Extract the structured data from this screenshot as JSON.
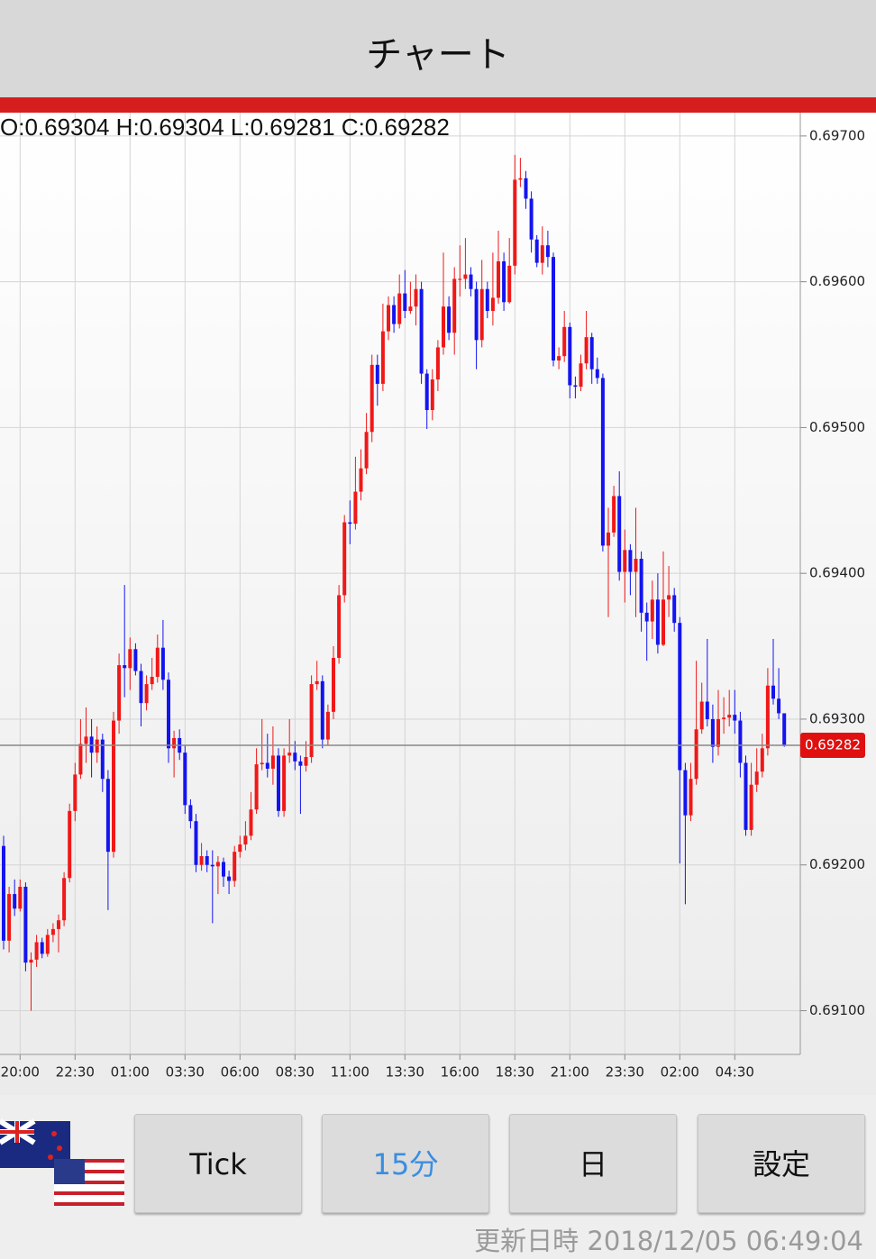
{
  "header": {
    "title": "チャート"
  },
  "chart_data": {
    "type": "candlestick",
    "ohlc_labels": [
      "O:",
      "H:",
      "L:",
      "C:"
    ],
    "categories": [
      null,
      null,
      null,
      "20:00",
      null,
      null,
      null,
      null,
      null,
      null,
      null,
      null,
      null,
      "22:30",
      null,
      null,
      null,
      null,
      null,
      null,
      null,
      null,
      null,
      "01:00",
      null,
      null,
      null,
      null,
      null,
      null,
      null,
      null,
      null,
      "03:30",
      null,
      null,
      null,
      null,
      null,
      null,
      null,
      null,
      null,
      "06:00",
      null,
      null,
      null,
      null,
      null,
      null,
      null,
      null,
      null,
      "08:30",
      null,
      null,
      null,
      null,
      null,
      null,
      null,
      null,
      null,
      "11:00",
      null,
      null,
      null,
      null,
      null,
      null,
      null,
      null,
      null,
      "13:30",
      null,
      null,
      null,
      null,
      null,
      null,
      null,
      null,
      null,
      "16:00",
      null,
      null,
      null,
      null,
      null,
      null,
      null,
      null,
      null,
      "18:30",
      null,
      null,
      null,
      null,
      null,
      null,
      null,
      null,
      null,
      "21:00",
      null,
      null,
      null,
      null,
      null,
      null,
      null,
      null,
      null,
      "23:30",
      null,
      null,
      null,
      null,
      null,
      null,
      null,
      null,
      null,
      "02:00",
      null,
      null,
      null,
      null,
      null,
      null,
      null,
      null,
      null,
      "04:30",
      null,
      null,
      null,
      null,
      null,
      null,
      null,
      null,
      null
    ],
    "open": [
      0.69213,
      0.69148,
      0.6918,
      0.6917,
      0.69185,
      0.69133,
      0.69135,
      0.69147,
      0.69139,
      0.69152,
      0.69156,
      0.69162,
      0.69191,
      0.69237,
      0.69262,
      0.69283,
      0.69288,
      0.69277,
      0.69286,
      0.69259,
      0.69209,
      0.69299,
      0.69337,
      0.69335,
      0.69348,
      0.69333,
      0.69311,
      0.69324,
      0.69329,
      0.69349,
      0.69327,
      0.6928,
      0.69287,
      0.69277,
      0.69241,
      0.6923,
      0.692,
      0.69206,
      0.692,
      0.69199,
      0.69202,
      0.69192,
      0.69189,
      0.69209,
      0.69214,
      0.6922,
      0.69238,
      0.69269,
      0.6927,
      0.69266,
      0.69275,
      0.69237,
      0.69275,
      0.69277,
      0.69271,
      0.69268,
      0.69274,
      0.69324,
      0.69326,
      0.69286,
      0.69305,
      0.69342,
      0.69385,
      0.69435,
      0.69434,
      0.69456,
      0.69472,
      0.69497,
      0.69543,
      0.6953,
      0.69566,
      0.69584,
      0.69571,
      0.69592,
      0.6958,
      0.69583,
      0.69595,
      0.69537,
      0.69512,
      0.69533,
      0.69555,
      0.69583,
      0.69565,
      0.69602,
      0.69602,
      0.69605,
      0.69595,
      0.6956,
      0.69595,
      0.6958,
      0.69589,
      0.69614,
      0.69586,
      0.69611,
      0.6967,
      0.69671,
      0.69657,
      0.69629,
      0.69613,
      0.69625,
      0.69617,
      0.69546,
      0.69549,
      0.69569,
      0.69529,
      0.69528,
      0.69544,
      0.69562,
      0.6954,
      0.69534,
      0.69419,
      0.69428,
      0.69453,
      0.69401,
      0.69416,
      0.69401,
      0.6941,
      0.69373,
      0.69367,
      0.69382,
      0.69351,
      0.69382,
      0.69385,
      0.69366,
      0.69265,
      0.69234,
      0.69259,
      0.69293,
      0.69312,
      0.693,
      0.69281,
      0.693,
      0.69301,
      0.69303,
      0.69299,
      0.6927,
      0.69224,
      0.69255,
      0.69264,
      0.6928,
      0.69323,
      0.69314,
      0.69304
    ],
    "high": [
      0.6922,
      0.69185,
      0.6919,
      0.6919,
      0.69188,
      0.6914,
      0.69152,
      0.6915,
      0.69156,
      0.6916,
      0.69166,
      0.69195,
      0.69242,
      0.6927,
      0.693,
      0.69308,
      0.693,
      0.69295,
      0.6929,
      0.69265,
      0.69305,
      0.69345,
      0.69392,
      0.69356,
      0.69352,
      0.69338,
      0.6933,
      0.69342,
      0.69358,
      0.69368,
      0.69332,
      0.69292,
      0.69293,
      0.69282,
      0.69245,
      0.69235,
      0.69215,
      0.6921,
      0.6921,
      0.69206,
      0.69205,
      0.69196,
      0.69213,
      0.6922,
      0.6923,
      0.6925,
      0.6928,
      0.693,
      0.6929,
      0.69295,
      0.6928,
      0.6928,
      0.693,
      0.69285,
      0.69275,
      0.69285,
      0.6933,
      0.6934,
      0.6933,
      0.6931,
      0.6935,
      0.69392,
      0.6944,
      0.6945,
      0.6948,
      0.69485,
      0.6951,
      0.6955,
      0.6955,
      0.69585,
      0.6959,
      0.6959,
      0.69605,
      0.69608,
      0.696,
      0.69605,
      0.696,
      0.6954,
      0.6954,
      0.6956,
      0.6962,
      0.6959,
      0.6961,
      0.69625,
      0.6963,
      0.6961,
      0.696,
      0.69615,
      0.696,
      0.6962,
      0.69635,
      0.6962,
      0.6963,
      0.69687,
      0.69685,
      0.69676,
      0.69662,
      0.69632,
      0.69638,
      0.69635,
      0.6962,
      0.69555,
      0.6958,
      0.69572,
      0.69535,
      0.6955,
      0.6958,
      0.69565,
      0.69548,
      0.69537,
      0.69445,
      0.6946,
      0.6947,
      0.6943,
      0.6942,
      0.69445,
      0.69415,
      0.6938,
      0.69395,
      0.694,
      0.69415,
      0.69405,
      0.6939,
      0.6937,
      0.6927,
      0.6927,
      0.6934,
      0.69325,
      0.69355,
      0.6931,
      0.6932,
      0.69315,
      0.6932,
      0.6932,
      0.69305,
      0.69275,
      0.6927,
      0.6928,
      0.6929,
      0.69335,
      0.69355,
      0.69335,
      0.69304
    ],
    "low": [
      0.69142,
      0.6914,
      0.69165,
      0.69168,
      0.69127,
      0.691,
      0.6913,
      0.69136,
      0.69137,
      0.69147,
      0.6914,
      0.69158,
      0.69188,
      0.6923,
      0.69259,
      0.6927,
      0.6926,
      0.6927,
      0.6925,
      0.69169,
      0.69205,
      0.6929,
      0.69315,
      0.6932,
      0.6933,
      0.69295,
      0.69306,
      0.6932,
      0.69325,
      0.6932,
      0.6927,
      0.6926,
      0.69272,
      0.69235,
      0.69225,
      0.69195,
      0.69196,
      0.69195,
      0.6916,
      0.6918,
      0.69185,
      0.6918,
      0.69185,
      0.69205,
      0.6921,
      0.69217,
      0.69235,
      0.69265,
      0.6926,
      0.69255,
      0.69233,
      0.69233,
      0.6927,
      0.69265,
      0.69235,
      0.69264,
      0.6927,
      0.6932,
      0.6928,
      0.69282,
      0.693,
      0.69338,
      0.6938,
      0.6942,
      0.6943,
      0.6945,
      0.69468,
      0.6949,
      0.69515,
      0.69525,
      0.6956,
      0.69565,
      0.69568,
      0.69575,
      0.69578,
      0.6957,
      0.6953,
      0.69499,
      0.69505,
      0.69525,
      0.6955,
      0.6956,
      0.6955,
      0.6959,
      0.69595,
      0.6959,
      0.6954,
      0.69555,
      0.69575,
      0.6957,
      0.69585,
      0.6958,
      0.69585,
      0.69605,
      0.69665,
      0.6965,
      0.6962,
      0.6961,
      0.69605,
      0.6961,
      0.69542,
      0.6954,
      0.69545,
      0.6952,
      0.6952,
      0.69525,
      0.6954,
      0.6953,
      0.6953,
      0.69415,
      0.6937,
      0.69425,
      0.69395,
      0.6938,
      0.69385,
      0.6937,
      0.6936,
      0.6934,
      0.69355,
      0.69345,
      0.6935,
      0.6937,
      0.6936,
      0.69201,
      0.69173,
      0.6923,
      0.69255,
      0.6929,
      0.69295,
      0.6927,
      0.69275,
      0.6929,
      0.69295,
      0.6929,
      0.6926,
      0.6922,
      0.6922,
      0.6925,
      0.6926,
      0.69275,
      0.6931,
      0.693,
      0.69281
    ],
    "close": [
      0.69148,
      0.6918,
      0.6917,
      0.69185,
      0.69133,
      0.69135,
      0.69147,
      0.69139,
      0.69152,
      0.69156,
      0.69162,
      0.69191,
      0.69237,
      0.69262,
      0.69283,
      0.69288,
      0.69277,
      0.69286,
      0.69259,
      0.69209,
      0.69299,
      0.69337,
      0.69335,
      0.69348,
      0.69333,
      0.69311,
      0.69324,
      0.69329,
      0.69349,
      0.69327,
      0.6928,
      0.69287,
      0.69277,
      0.69241,
      0.6923,
      0.692,
      0.69206,
      0.692,
      0.69199,
      0.69202,
      0.69192,
      0.69189,
      0.69209,
      0.69214,
      0.6922,
      0.69238,
      0.69269,
      0.6927,
      0.69266,
      0.69275,
      0.69237,
      0.69275,
      0.69277,
      0.69271,
      0.69268,
      0.69274,
      0.69324,
      0.69326,
      0.69286,
      0.69305,
      0.69342,
      0.69385,
      0.69435,
      0.69434,
      0.69456,
      0.69472,
      0.69497,
      0.69543,
      0.6953,
      0.69566,
      0.69584,
      0.69571,
      0.69592,
      0.6958,
      0.69583,
      0.69595,
      0.69537,
      0.69512,
      0.69533,
      0.69555,
      0.69583,
      0.69565,
      0.69602,
      0.69602,
      0.69605,
      0.69595,
      0.6956,
      0.69595,
      0.6958,
      0.69589,
      0.69614,
      0.69586,
      0.69611,
      0.6967,
      0.69671,
      0.69657,
      0.69629,
      0.69613,
      0.69625,
      0.69617,
      0.69546,
      0.69549,
      0.69569,
      0.69529,
      0.69528,
      0.69544,
      0.69562,
      0.6954,
      0.69534,
      0.69419,
      0.69428,
      0.69453,
      0.69401,
      0.69416,
      0.69401,
      0.6941,
      0.69373,
      0.69367,
      0.69382,
      0.69351,
      0.69382,
      0.69385,
      0.69366,
      0.69265,
      0.69234,
      0.69259,
      0.69293,
      0.69312,
      0.693,
      0.69281,
      0.693,
      0.69301,
      0.69303,
      0.69299,
      0.6927,
      0.69224,
      0.69255,
      0.69264,
      0.6928,
      0.69323,
      0.69314,
      0.69304,
      0.69282
    ],
    "up_color": "#f01818",
    "down_color": "#1414f0",
    "ylim": [
      0.6907,
      0.69716
    ],
    "yticks": [
      {
        "value": 0.691,
        "label": "0.69100"
      },
      {
        "value": 0.692,
        "label": "0.69200"
      },
      {
        "value": 0.693,
        "label": "0.69300"
      },
      {
        "value": 0.694,
        "label": "0.69400"
      },
      {
        "value": 0.695,
        "label": "0.69500"
      },
      {
        "value": 0.696,
        "label": "0.69600"
      },
      {
        "value": 0.697,
        "label": "0.69700"
      }
    ],
    "grid": true
  },
  "buttons": [
    "Tick",
    "15分",
    "日",
    "設定"
  ],
  "footer": {
    "label": "更新日時",
    "timestamp": "2018/12/05 06:49:04"
  }
}
